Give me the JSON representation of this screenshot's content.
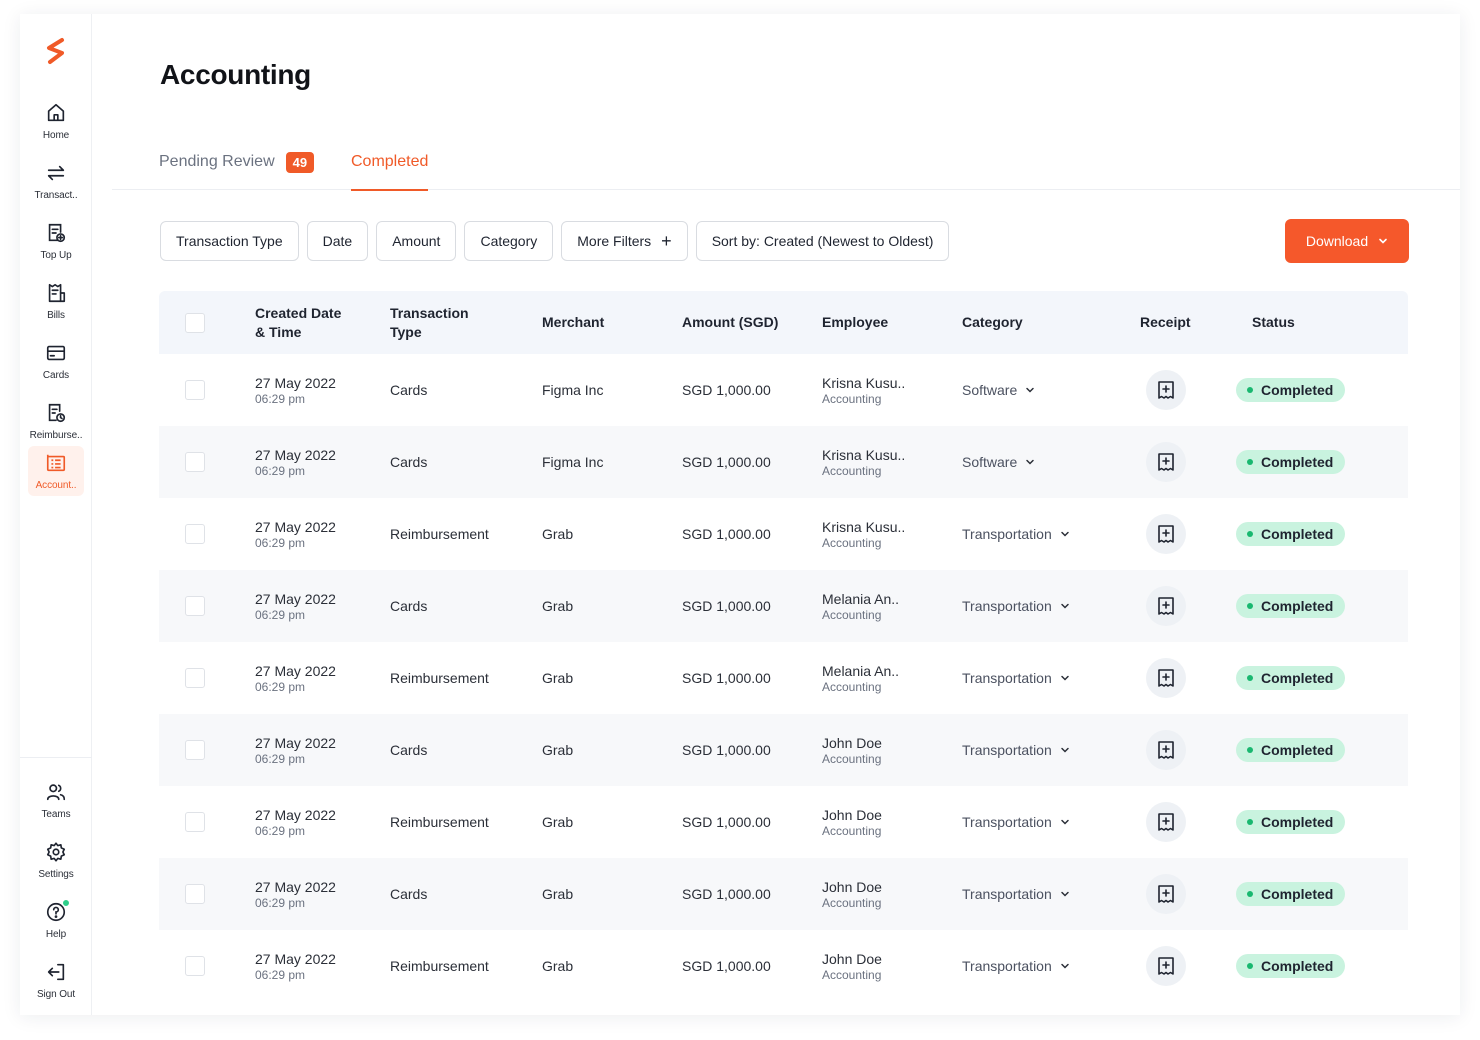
{
  "sidebar": {
    "items": [
      {
        "label": "Home",
        "icon": "home-icon"
      },
      {
        "label": "Transact..",
        "icon": "transfer-arrows-icon"
      },
      {
        "label": "Top Up",
        "icon": "top-up-icon"
      },
      {
        "label": "Bills",
        "icon": "bill-icon"
      },
      {
        "label": "Cards",
        "icon": "card-icon"
      },
      {
        "label": "Reimburse..",
        "icon": "reimburse-icon"
      },
      {
        "label": "Account..",
        "icon": "accounting-icon"
      }
    ],
    "bottom_items": [
      {
        "label": "Teams",
        "icon": "teams-icon"
      },
      {
        "label": "Settings",
        "icon": "gear-icon"
      },
      {
        "label": "Help",
        "icon": "help-icon"
      },
      {
        "label": "Sign Out",
        "icon": "sign-out-icon"
      }
    ]
  },
  "header": {
    "title": "Accounting"
  },
  "tabs": {
    "pending_label": "Pending Review",
    "pending_count": "49",
    "completed_label": "Completed"
  },
  "filters": {
    "transaction_type": "Transaction Type",
    "date": "Date",
    "amount": "Amount",
    "category": "Category",
    "more_filters": "More Filters",
    "sort": "Sort by: Created (Newest to Oldest)"
  },
  "download_label": "Download",
  "table": {
    "headers": {
      "created_line1": "Created Date",
      "created_line2": "& Time",
      "type_line1": "Transaction",
      "type_line2": "Type",
      "merchant": "Merchant",
      "amount": "Amount (SGD)",
      "employee": "Employee",
      "category": "Category",
      "receipt": "Receipt",
      "status": "Status"
    },
    "rows": [
      {
        "date": "27 May 2022",
        "time": "06:29 pm",
        "type": "Cards",
        "merchant": "Figma Inc",
        "amount": "SGD 1,000.00",
        "employee": "Krisna Kusu..",
        "department": "Accounting",
        "category": "Software",
        "status": "Completed"
      },
      {
        "date": "27 May 2022",
        "time": "06:29 pm",
        "type": "Cards",
        "merchant": "Figma Inc",
        "amount": "SGD 1,000.00",
        "employee": "Krisna Kusu..",
        "department": "Accounting",
        "category": "Software",
        "status": "Completed"
      },
      {
        "date": "27 May 2022",
        "time": "06:29 pm",
        "type": "Reimbursement",
        "merchant": "Grab",
        "amount": "SGD 1,000.00",
        "employee": "Krisna Kusu..",
        "department": "Accounting",
        "category": "Transportation",
        "status": "Completed"
      },
      {
        "date": "27 May 2022",
        "time": "06:29 pm",
        "type": "Cards",
        "merchant": "Grab",
        "amount": "SGD 1,000.00",
        "employee": "Melania An..",
        "department": "Accounting",
        "category": "Transportation",
        "status": "Completed"
      },
      {
        "date": "27 May 2022",
        "time": "06:29 pm",
        "type": "Reimbursement",
        "merchant": "Grab",
        "amount": "SGD 1,000.00",
        "employee": "Melania An..",
        "department": "Accounting",
        "category": "Transportation",
        "status": "Completed"
      },
      {
        "date": "27 May 2022",
        "time": "06:29 pm",
        "type": "Cards",
        "merchant": "Grab",
        "amount": "SGD 1,000.00",
        "employee": "John Doe",
        "department": "Accounting",
        "category": "Transportation",
        "status": "Completed"
      },
      {
        "date": "27 May 2022",
        "time": "06:29 pm",
        "type": "Reimbursement",
        "merchant": "Grab",
        "amount": "SGD 1,000.00",
        "employee": "John Doe",
        "department": "Accounting",
        "category": "Transportation",
        "status": "Completed"
      },
      {
        "date": "27 May 2022",
        "time": "06:29 pm",
        "type": "Cards",
        "merchant": "Grab",
        "amount": "SGD 1,000.00",
        "employee": "John Doe",
        "department": "Accounting",
        "category": "Transportation",
        "status": "Completed"
      },
      {
        "date": "27 May 2022",
        "time": "06:29 pm",
        "type": "Reimbursement",
        "merchant": "Grab",
        "amount": "SGD 1,000.00",
        "employee": "John Doe",
        "department": "Accounting",
        "category": "Transportation",
        "status": "Completed"
      }
    ]
  },
  "colors": {
    "accent": "#f05a28",
    "status_bg": "#c9f3df",
    "status_dot": "#19b870",
    "header_bg": "#f3f6fb"
  }
}
